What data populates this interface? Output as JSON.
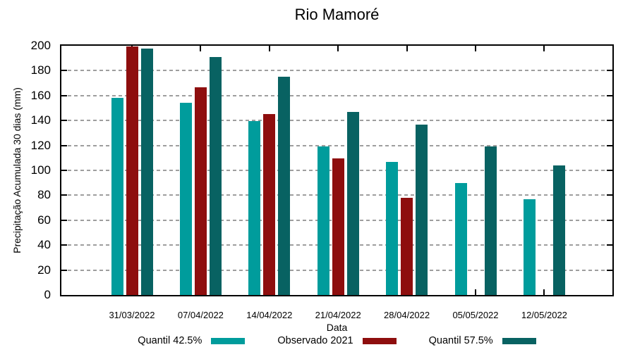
{
  "chart_data": {
    "type": "bar",
    "title": "Rio Mamoré",
    "xlabel": "Data",
    "ylabel": "Precipitação Acumulada 30 dias (mm)",
    "categories": [
      "31/03/2022",
      "07/04/2022",
      "14/04/2022",
      "21/04/2022",
      "28/04/2022",
      "05/05/2022",
      "12/05/2022"
    ],
    "series": [
      {
        "name": "Quantil 42.5%",
        "color": "#009C9C",
        "values": [
          158,
          154.5,
          139.5,
          119,
          107,
          90,
          77
        ]
      },
      {
        "name": "Observado 2021",
        "color": "#8E0E0E",
        "values": [
          199.5,
          166.5,
          145,
          109.5,
          78,
          null,
          null
        ]
      },
      {
        "name": "Quantil 57.5%",
        "color": "#086262",
        "values": [
          197.5,
          191,
          175,
          147,
          137,
          119.5,
          104
        ]
      }
    ],
    "ylim": [
      0,
      200
    ],
    "ytick_step": 20,
    "grid": true,
    "legend_position": "bottom",
    "colors": {
      "gridline": "#9e9e9e",
      "axis": "#000000",
      "background": "#ffffff"
    }
  }
}
